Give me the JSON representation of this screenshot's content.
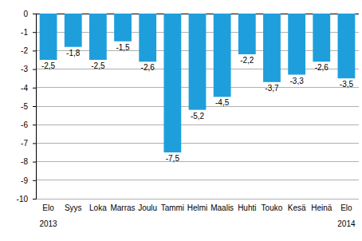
{
  "chart_data": {
    "type": "bar",
    "categories": [
      "Elo",
      "Syys",
      "Loka",
      "Marras",
      "Joulu",
      "Tammi",
      "Helmi",
      "Maalis",
      "Huhti",
      "Touko",
      "Kesä",
      "Heinä",
      "Elo"
    ],
    "values": [
      -2.5,
      -1.8,
      -2.5,
      -1.5,
      -2.6,
      -7.5,
      -5.2,
      -4.5,
      -2.2,
      -3.7,
      -3.3,
      -2.6,
      -3.5
    ],
    "value_labels": [
      "-2,5",
      "-1,8",
      "-2,5",
      "-1,5",
      "-2,6",
      "-7,5",
      "-5,2",
      "-4,5",
      "-2,2",
      "-3,7",
      "-3,3",
      "-2,6",
      "-3,5"
    ],
    "annotations": [
      "2013",
      "2014"
    ],
    "color": "#1e9fdc",
    "ylim": [
      -10,
      0
    ],
    "yticks": [
      0,
      -1,
      -2,
      -3,
      -4,
      -5,
      -6,
      -7,
      -8,
      -9,
      -10
    ],
    "grid": true,
    "data_labels": true
  }
}
